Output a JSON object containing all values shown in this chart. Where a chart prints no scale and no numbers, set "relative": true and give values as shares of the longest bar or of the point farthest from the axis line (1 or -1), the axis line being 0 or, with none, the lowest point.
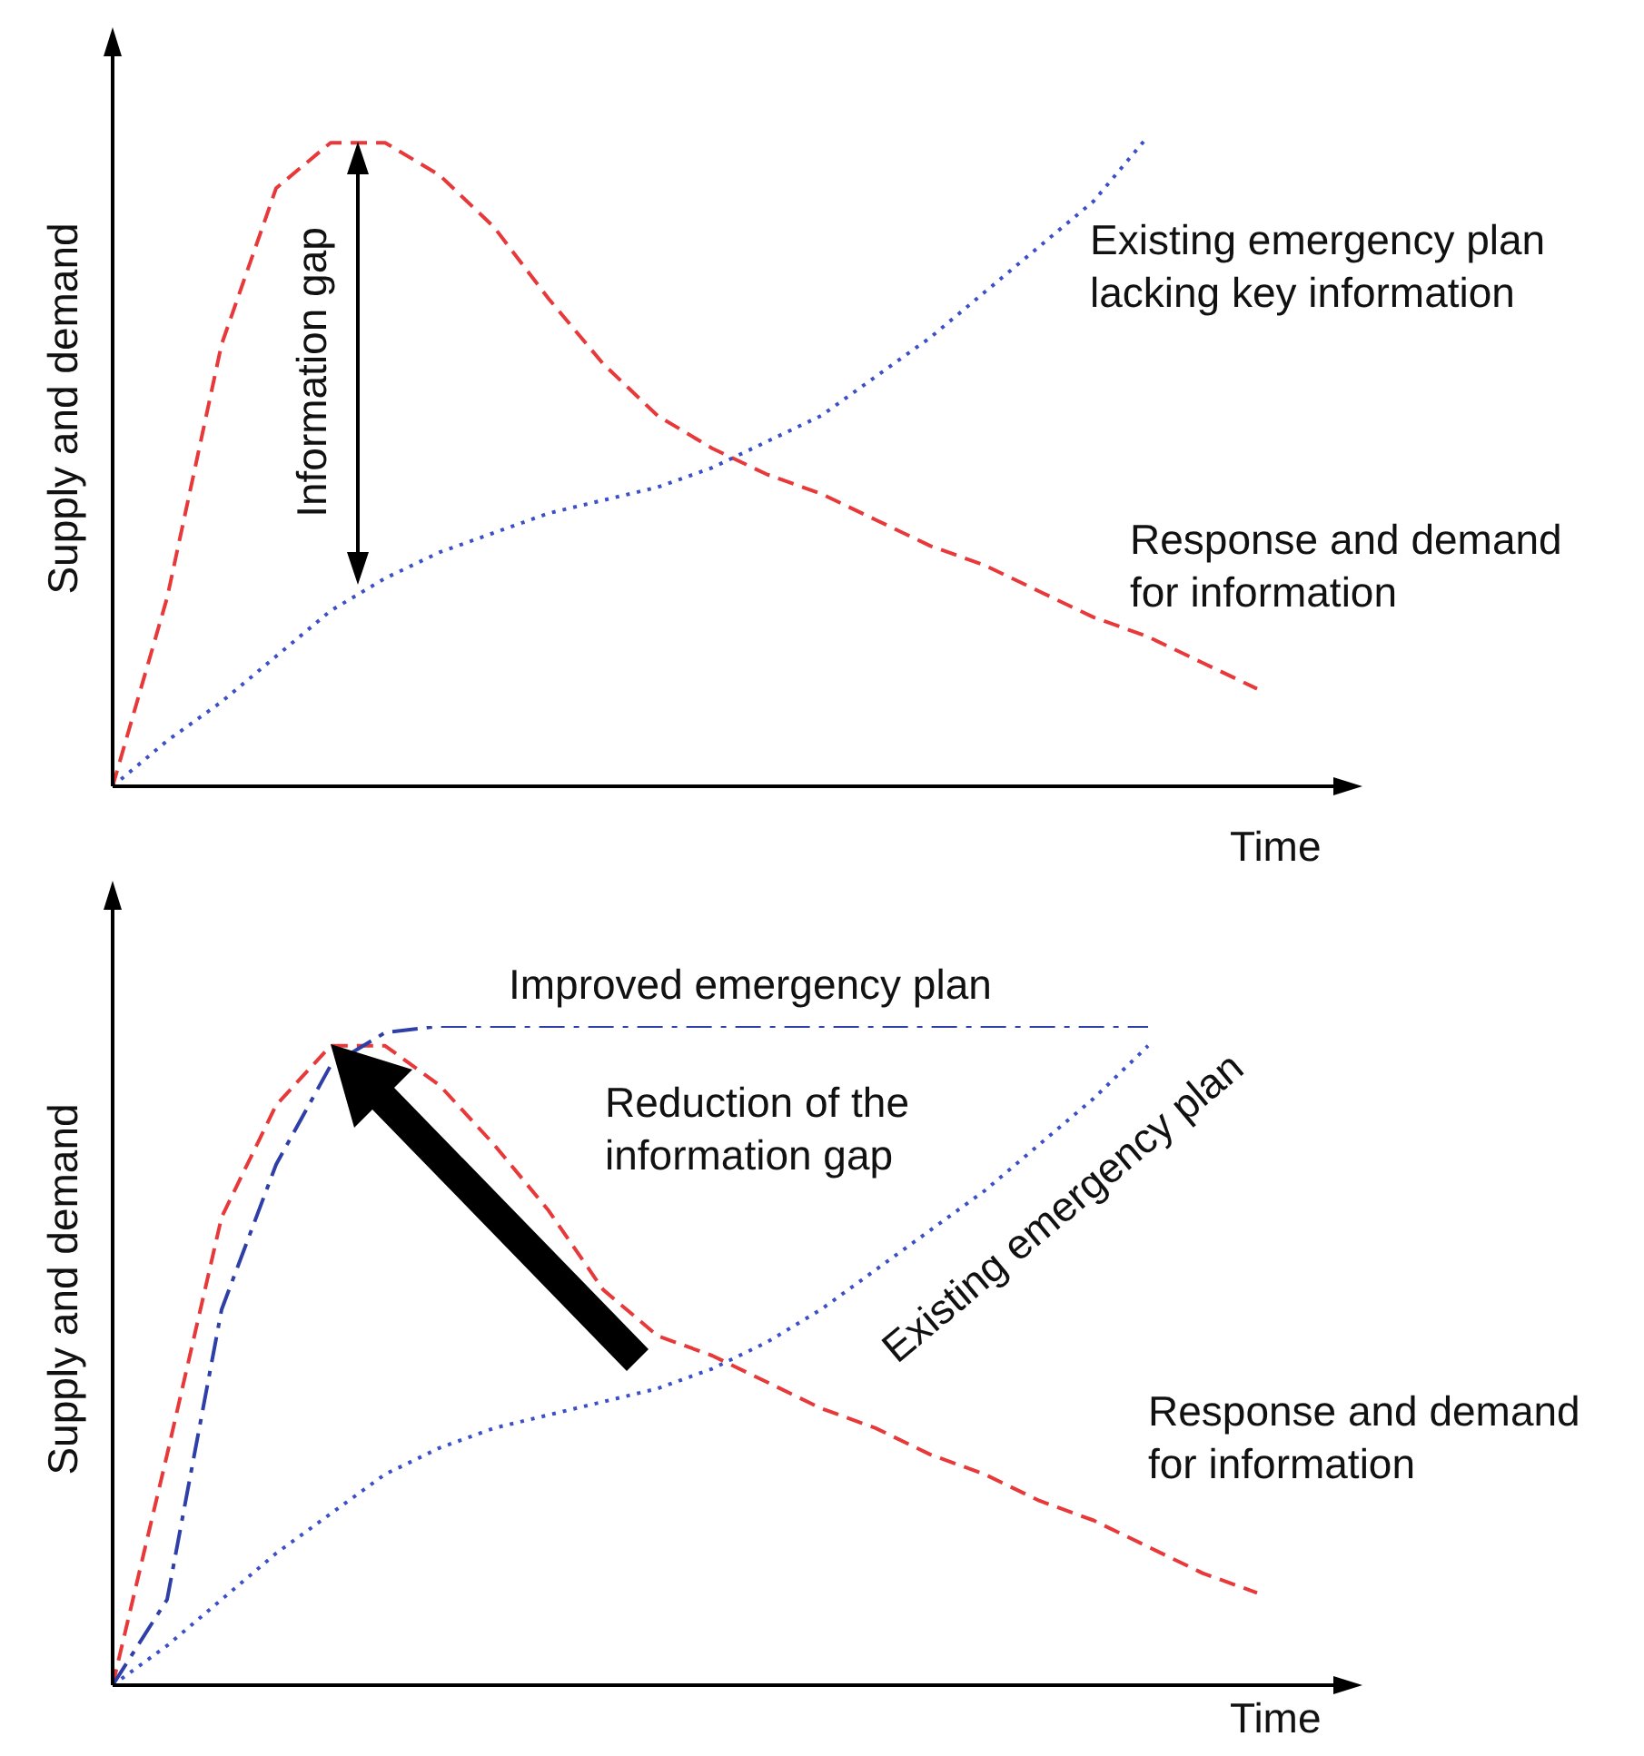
{
  "chart_data": [
    {
      "type": "line",
      "relative": true,
      "legend": false,
      "marker": "none",
      "xlabel": "Time",
      "ylabel": "Supply and demand",
      "categories": [
        null,
        null,
        null,
        null,
        null,
        null,
        null,
        null,
        null,
        null,
        null,
        null,
        null,
        null,
        null,
        null,
        null,
        null,
        null,
        null,
        null,
        null
      ],
      "series": [
        {
          "name": "Existing emergency plan lacking key information",
          "color": "#3b4fc8",
          "line_style": "dotted",
          "values": [
            0,
            0.07,
            0.13,
            0.2,
            0.27,
            0.32,
            0.36,
            0.39,
            0.42,
            0.44,
            0.46,
            0.49,
            0.53,
            0.57,
            0.63,
            0.69,
            0.76,
            0.83,
            0.9,
            1,
            null,
            null
          ]
        },
        {
          "name": "Response and demand for information",
          "color": "#e8393a",
          "line_style": "dashed",
          "values": [
            0,
            0.29,
            0.68,
            0.92,
            0.99,
            0.99,
            0.94,
            0.86,
            0.75,
            0.65,
            0.57,
            0.52,
            0.48,
            0.45,
            0.41,
            0.37,
            0.34,
            0.3,
            0.26,
            0.23,
            0.19,
            0.15
          ]
        }
      ],
      "annotations": [
        "Information gap"
      ]
    },
    {
      "type": "line",
      "relative": true,
      "legend": false,
      "marker": "none",
      "xlabel": "Time",
      "ylabel": "Supply and demand",
      "categories": [
        null,
        null,
        null,
        null,
        null,
        null,
        null,
        null,
        null,
        null,
        null,
        null,
        null,
        null,
        null,
        null,
        null,
        null,
        null,
        null,
        null,
        null
      ],
      "series": [
        {
          "name": "Improved emergency plan",
          "color": "#2f3fa8",
          "line_style": "dashdot",
          "values": [
            0,
            0.13,
            0.57,
            0.79,
            0.94,
            0.99,
            1,
            1,
            1,
            1,
            1,
            1,
            1,
            1,
            1,
            1,
            1,
            1,
            1,
            1,
            null,
            null
          ]
        },
        {
          "name": "Existing emergency plan",
          "color": "#3b4fc8",
          "line_style": "dotted",
          "values": [
            0,
            0.06,
            0.13,
            0.2,
            0.26,
            0.32,
            0.36,
            0.39,
            0.41,
            0.43,
            0.45,
            0.48,
            0.52,
            0.57,
            0.63,
            0.69,
            0.75,
            0.82,
            0.89,
            0.97,
            null,
            null
          ]
        },
        {
          "name": "Response and demand for information",
          "color": "#e8393a",
          "line_style": "dashed",
          "values": [
            0,
            0.35,
            0.71,
            0.88,
            0.97,
            0.97,
            0.91,
            0.82,
            0.72,
            0.6,
            0.53,
            0.5,
            0.46,
            0.42,
            0.39,
            0.35,
            0.32,
            0.28,
            0.25,
            0.21,
            0.17,
            0.14
          ]
        }
      ],
      "annotations": [
        "Reduction of the information gap"
      ]
    }
  ]
}
